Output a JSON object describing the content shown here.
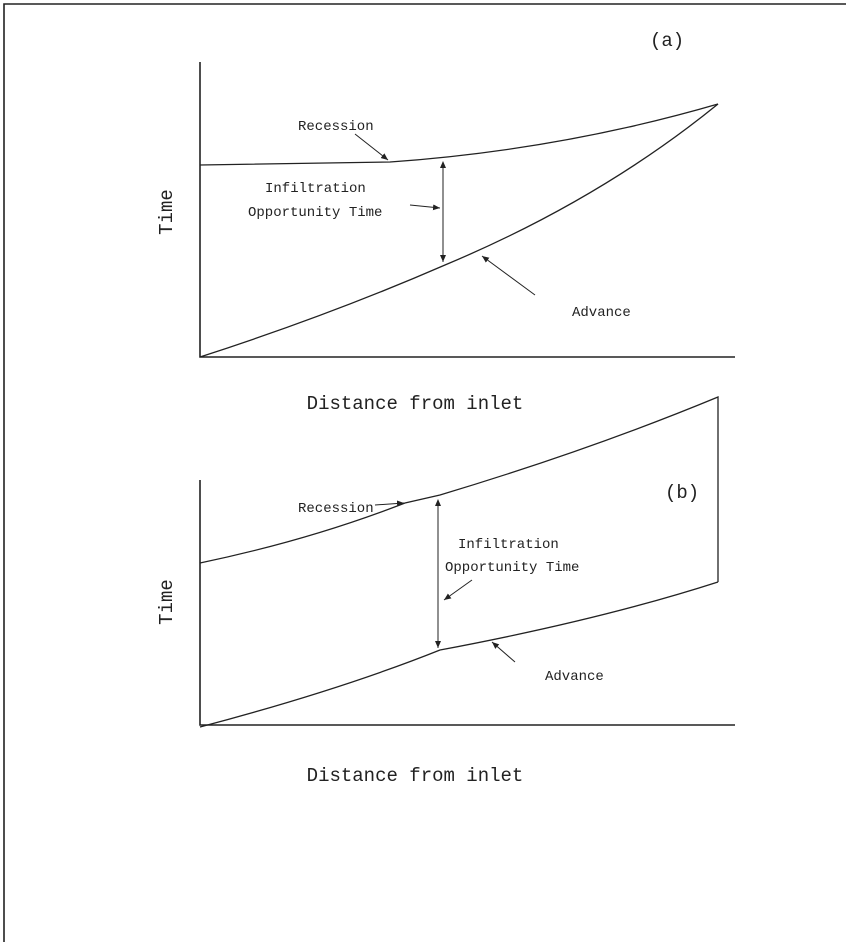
{
  "panels": [
    {
      "label": "(a)",
      "y_axis_label": "Time",
      "x_axis_label": "Distance from inlet",
      "recession_label": "Recession",
      "iot_label": [
        "Infiltration",
        "Opportunity Time"
      ],
      "advance_label": "Advance"
    },
    {
      "label": "(b)",
      "y_axis_label": "Time",
      "x_axis_label": "Distance from inlet",
      "recession_label": "Recession",
      "iot_label": [
        "Infiltration",
        "Opportunity Time"
      ],
      "advance_label": "Advance"
    }
  ]
}
